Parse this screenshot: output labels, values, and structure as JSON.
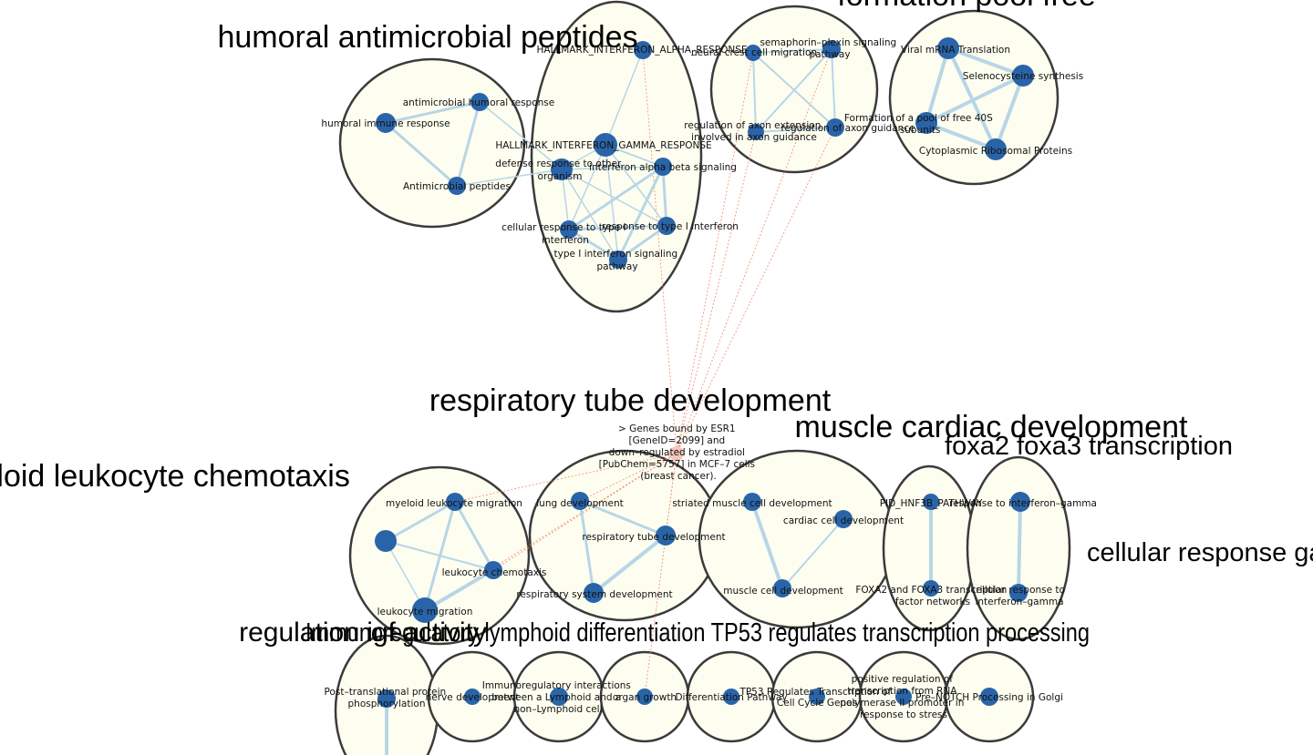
{
  "cluster_titles": {
    "humoral": "humoral antimicrobial peptides",
    "formation": "formation pool free",
    "respiratory": "respiratory tube development",
    "muscle": "muscle cardiac development",
    "foxa2": "foxa2 foxa3 transcription",
    "myeloid": "myeloid leukocyte chemotaxis",
    "cellular_response": "cellular response gamma",
    "igf": "regulation igf activity",
    "bottom_row_overlap": "Immunoregulatory lymphoid differentiation TP53 regulates transcription processing"
  },
  "nodes": {
    "antimicrobial_humoral_response": "antimicrobial humoral response",
    "humoral_immune_response": "humoral immune response",
    "antimicrobial_peptides": "Antimicrobial peptides",
    "hallmark_alpha": "HALLMARK_INTERFERON_ALPHA_RESPONSE",
    "hallmark_gamma": "HALLMARK_INTERFERON_GAMMA_RESPONSE",
    "defense_response": [
      "defense response to other",
      "organism"
    ],
    "interferon_alpha_beta": "interferon alpha beta signaling",
    "cellular_response_typeI": [
      "cellular response to type I",
      "interferon"
    ],
    "response_typeI": "response to type I interferon",
    "typeI_signaling": [
      "type I interferon signaling",
      "pathway"
    ],
    "semaphorin": [
      "semaphorin–plexin signaling",
      "pathway"
    ],
    "neural_crest": "neural crest cell migration",
    "axon_extension": [
      "regulation of axon extension",
      "involved in axon guidance"
    ],
    "axon_guidance": "regulation of axon guidance",
    "viral_mrna": "Viral mRNA Translation",
    "selenocysteine": "Selenocysteine synthesis",
    "formation_40s": [
      "Formation of a pool of free 40S",
      "subunits"
    ],
    "cytoplasmic_ribosomal": "Cytoplasmic Ribosomal Proteins",
    "esr1_genes": [
      "> Genes bound by ESR1",
      "[GeneID=2099] and",
      "down–regulated by estradiol",
      "[PubChem=5757] in MCF–7 cells",
      "(breast cancer)."
    ],
    "myeloid_leukocyte_migration": "myeloid leukocyte migration",
    "leukocyte_chemotaxis": "leukocyte chemotaxis",
    "leukocyte_migration": "leukocyte migration",
    "lung_development": "lung development",
    "respiratory_tube_dev": "respiratory tube development",
    "respiratory_system_dev": "respiratory system development",
    "striated_muscle": "striated muscle cell development",
    "cardiac_cell": "cardiac cell development",
    "muscle_cell": "muscle cell development",
    "pid_hnf3b": "PID_HNF3B_PATHWAY",
    "foxa2_foxa3": [
      "FOXA2 and FOXA3 transcription",
      "factor networks"
    ],
    "response_ifng": "response to interferon–gamma",
    "cellular_response_ifng": [
      "cellular response to",
      "interferon–gamma"
    ],
    "post_translational": [
      "Post–translational protein",
      "phosphorylation"
    ],
    "nerve_development": "nerve development",
    "immunoregulatory": [
      "Immunoregulatory interactions",
      "between a Lymphoid and a",
      "non–Lymphoid cell"
    ],
    "organ_growth": "organ growth",
    "differentiation_pathway": "Differentiation Pathway",
    "tp53": [
      "TP53 Regulates Transcription of",
      "Cell Cycle Genes"
    ],
    "positive_regulation": [
      "positive regulation of",
      "transcription from RNA",
      "polymerase II promoter in",
      "response to stress"
    ],
    "pre_notch": "Pre–NOTCH Processing in Golgi"
  },
  "colors": {
    "node_fill": "#2a64a8",
    "cluster_fill": "#fefef0",
    "cluster_stroke": "#3b3b3b",
    "edge": "#b7d6e6",
    "cross_edge": "#f08a6a"
  }
}
